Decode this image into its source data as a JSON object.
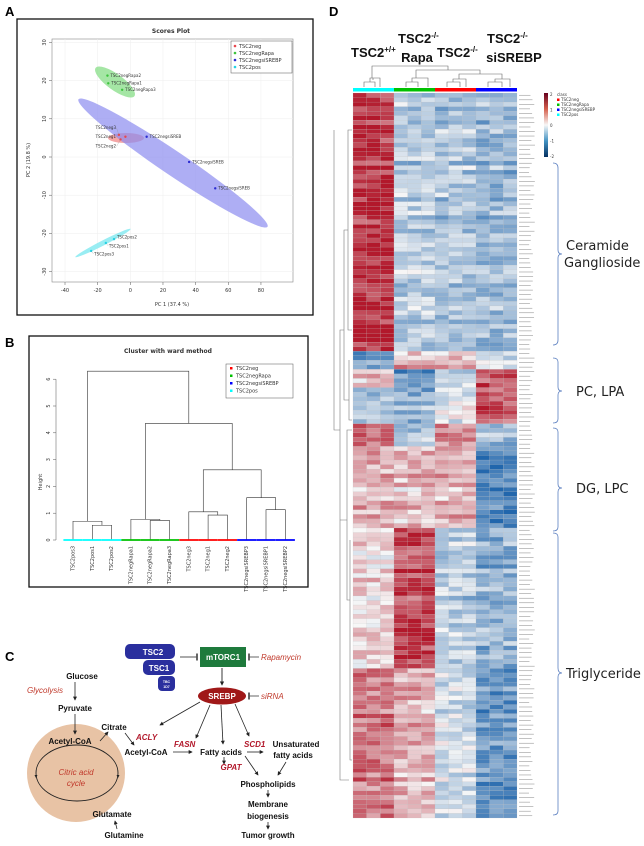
{
  "panels": {
    "a": {
      "label": "A"
    },
    "b": {
      "label": "B"
    },
    "c": {
      "label": "C"
    },
    "d": {
      "label": "D"
    }
  },
  "chart_data": [
    {
      "type": "scatter",
      "title": "Scores Plot",
      "xlabel": "PC 1 (37.4 %)",
      "ylabel": "PC 2 (19.8 %)",
      "xlim": [
        -45,
        90
      ],
      "ylim": [
        -32,
        31
      ],
      "xticks": [
        "-40",
        "-20",
        "0",
        "20",
        "40",
        "60",
        "80"
      ],
      "yticks": [
        "30",
        "20",
        "10",
        "0",
        "-10",
        "-20",
        "-30"
      ],
      "xtick_values": [
        -40,
        -20,
        0,
        20,
        40,
        60,
        80
      ],
      "ytick_values": [
        30,
        20,
        10,
        0,
        -10,
        -20,
        -30
      ],
      "grid": true,
      "legend": "top-right",
      "series": [
        {
          "name": "TSC2neg",
          "color": "#e8474d",
          "marker": "triangle",
          "points": [
            {
              "x": -7,
              "y": 5.8,
              "label": "TSC2neg3"
            },
            {
              "x": -3,
              "y": 5.3,
              "label": "TSC2neg1"
            },
            {
              "x": -6,
              "y": 4.6,
              "label": "TSC2neg2"
            }
          ]
        },
        {
          "name": "TSC2negRapa",
          "color": "#3cc33c",
          "marker": "plus",
          "points": [
            {
              "x": -14,
              "y": 21.3,
              "label": "TSC2negRapa2"
            },
            {
              "x": -13.5,
              "y": 19.3,
              "label": "TSC2negRapa1"
            },
            {
              "x": -5,
              "y": 17.6,
              "label": "TSC2negRapa3"
            }
          ]
        },
        {
          "name": "TSC2negsiSREBP",
          "color": "#2a2ad0",
          "marker": "x",
          "points": [
            {
              "x": 10,
              "y": 5.3,
              "label": "TSC2negsiSREB"
            },
            {
              "x": 36,
              "y": -1.3,
              "label": "TSC2negsiSREB"
            },
            {
              "x": 52,
              "y": -8.2,
              "label": "TSC2negsiSREB"
            }
          ]
        },
        {
          "name": "TSC2pos",
          "color": "#22d4e6",
          "marker": "diamond",
          "points": [
            {
              "x": -10,
              "y": -21.5,
              "label": "TSC2pos2"
            },
            {
              "x": -15,
              "y": -22.5,
              "label": "TSC2pos1"
            },
            {
              "x": -24,
              "y": -24.6,
              "label": "TSC2pos3"
            }
          ]
        }
      ]
    },
    {
      "type": "dendrogram",
      "title": "Cluster with ward method",
      "ylabel": "Height",
      "ylim": [
        0,
        6.5
      ],
      "yticks": [
        "0",
        "1",
        "2",
        "3",
        "4",
        "5",
        "6"
      ],
      "legend": "top-right",
      "legend_entries": [
        {
          "name": "TSC2neg",
          "color": "#ff0000"
        },
        {
          "name": "TSC2negRapa",
          "color": "#00c000"
        },
        {
          "name": "TSC2negsiSREBP",
          "color": "#0000ff"
        },
        {
          "name": "TSC2pos",
          "color": "#00ffff"
        }
      ],
      "leaves": [
        {
          "name": "TSC2pos3",
          "group": 3
        },
        {
          "name": "TSC2pos1",
          "group": 3
        },
        {
          "name": "TSC2pos2",
          "group": 3
        },
        {
          "name": "TSC2negRapa1",
          "group": 1
        },
        {
          "name": "TSC2negRapa2",
          "group": 1
        },
        {
          "name": "TSC2negRapa3",
          "group": 1
        },
        {
          "name": "TSC2neg3",
          "group": 0
        },
        {
          "name": "TSC2neg1",
          "group": 0
        },
        {
          "name": "TSC2neg2",
          "group": 0
        },
        {
          "name": "TSC2negsiSREBP3",
          "group": 2
        },
        {
          "name": "TSC2negsiSREBP1",
          "group": 2
        },
        {
          "name": "TSC2negsiSREBP2",
          "group": 2
        }
      ],
      "merges": [
        {
          "a": 1,
          "b": 2,
          "height": 0.55
        },
        {
          "a": 0,
          "b": "m0",
          "height": 0.7
        },
        {
          "a": 4,
          "b": 5,
          "height": 0.73
        },
        {
          "a": 3,
          "b": "m2",
          "height": 0.77
        },
        {
          "a": 7,
          "b": 8,
          "height": 0.93
        },
        {
          "a": 6,
          "b": "m4",
          "height": 1.05
        },
        {
          "a": 10,
          "b": 11,
          "height": 1.13
        },
        {
          "a": 9,
          "b": "m6",
          "height": 1.58
        },
        {
          "a": "m5",
          "b": "m7",
          "height": 2.62
        },
        {
          "a": "m3",
          "b": "m8",
          "height": 4.35
        },
        {
          "a": "m1",
          "b": "m9",
          "height": 6.3
        }
      ]
    },
    {
      "type": "heatmap",
      "color_scale": {
        "min": -2,
        "max": 2,
        "low": "#2166ac",
        "mid": "#f7f7f7",
        "high": "#b2182b",
        "ticks": [
          "2",
          "1",
          "0",
          "-1",
          "-2"
        ]
      },
      "legend_title": "class",
      "column_groups": [
        {
          "name": "TSC2pos",
          "color": "#00ffff",
          "n": 3
        },
        {
          "name": "TSC2negRapa",
          "color": "#00c000",
          "n": 3
        },
        {
          "name": "TSC2neg",
          "color": "#ff0000",
          "n": 3
        },
        {
          "name": "TSC2negsiSREBP",
          "color": "#0000ff",
          "n": 3
        }
      ],
      "legend_entries": [
        "TSC2neg",
        "TSC2negRapa",
        "TSC2negsiSREBP",
        "TSC2pos"
      ],
      "row_blocks": [
        {
          "rows": 57,
          "profile": [
            1.8,
            -0.6,
            -0.7,
            -0.9
          ]
        },
        {
          "rows": 4,
          "profile": [
            -1.2,
            0.7,
            0.6,
            -0.3
          ]
        },
        {
          "rows": 4,
          "profile": [
            0.6,
            -1.3,
            -0.2,
            1.6
          ]
        },
        {
          "rows": 8,
          "profile": [
            -0.7,
            -0.9,
            -0.1,
            1.5
          ]
        },
        {
          "rows": 5,
          "profile": [
            1.2,
            -0.6,
            1.0,
            -0.9
          ]
        },
        {
          "rows": 18,
          "profile": [
            0.6,
            0.5,
            0.6,
            -1.6
          ]
        },
        {
          "rows": 31,
          "profile": [
            0.2,
            1.6,
            -0.6,
            -1.0
          ]
        },
        {
          "rows": 33,
          "profile": [
            1.1,
            0.6,
            -0.4,
            -1.4
          ]
        }
      ]
    }
  ],
  "pathway": {
    "tsc2": "TSC2",
    "tsc1": "TSC1",
    "tbc_1": "TBC",
    "tbc_2": "1D7",
    "mtorc1": "mTORC1",
    "rapamycin": "Rapamycin",
    "srebp": "SREBP",
    "sirna": "siRNA",
    "glucose": "Glucose",
    "glycolysis": "Glycolysis",
    "pyruvate": "Pyruvate",
    "acetyl_coa_1": "Acetyl-CoA",
    "citrate": "Citrate",
    "acly": "ACLY",
    "acetyl_coa_2": "Acetyl-CoA",
    "fasn": "FASN",
    "fatty_acids": "Fatty acids",
    "scd1": "SCD1",
    "unsat_1": "Unsaturated",
    "unsat_2": "fatty acids",
    "gpat": "GPAT",
    "phospholipids": "Phospholipids",
    "membrane_1": "Membrane",
    "membrane_2": "biogenesis",
    "tumor_growth": "Tumor growth",
    "cycle_1": "Citric acid",
    "cycle_2": "cycle",
    "glutamate": "Glutamate",
    "glutamine": "Glutamine"
  },
  "heatmap_header": {
    "g1": "TSC2",
    "g1_sup": "+/+",
    "g2": "TSC2",
    "g2_sup": "-/-",
    "g2_sub": "Rapa",
    "g3": "TSC2",
    "g3_sup": "-/-",
    "g4": "TSC2",
    "g4_sup": "-/-",
    "g4_sub": "siSREBP"
  },
  "lipid_groups": [
    {
      "label_1": "Ceramide",
      "label_2": "Ganglioside"
    },
    {
      "label_1": "PC, LPA"
    },
    {
      "label_1": "DG, LPC"
    },
    {
      "label_1": "Triglyceride"
    }
  ]
}
